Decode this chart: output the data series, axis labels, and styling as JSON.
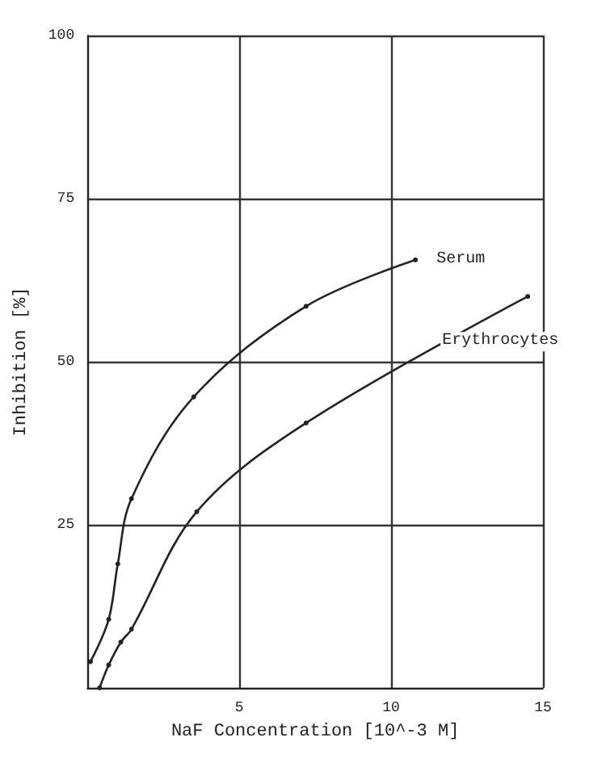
{
  "chart_data": {
    "type": "line",
    "xlabel": "NaF Concentration [10^-3 M]",
    "ylabel": "Inhibition [%]",
    "xlim": [
      0,
      15
    ],
    "xticks": [
      {
        "value": 0,
        "label": null
      },
      5,
      10,
      15
    ],
    "ylim": [
      0,
      100
    ],
    "yticks": [
      {
        "value": 0,
        "label": null
      },
      25,
      50,
      75,
      100
    ],
    "grid": true,
    "legend": false,
    "marker": "circle",
    "line_style": "solid",
    "series": [
      {
        "name": "Serum",
        "color": "#222222",
        "x": [
          0.1,
          0.7,
          1.0,
          1.45,
          3.5,
          7.2,
          10.8
        ],
        "values": [
          4,
          10.5,
          19,
          29,
          44.6,
          58.5,
          65.6
        ]
      },
      {
        "name": "Erythrocytes",
        "color": "#222222",
        "x": [
          0.4,
          0.7,
          1.1,
          1.45,
          3.6,
          7.2,
          14.5
        ],
        "values": [
          0,
          3.5,
          7,
          9,
          27,
          40.6,
          60
        ]
      }
    ]
  }
}
